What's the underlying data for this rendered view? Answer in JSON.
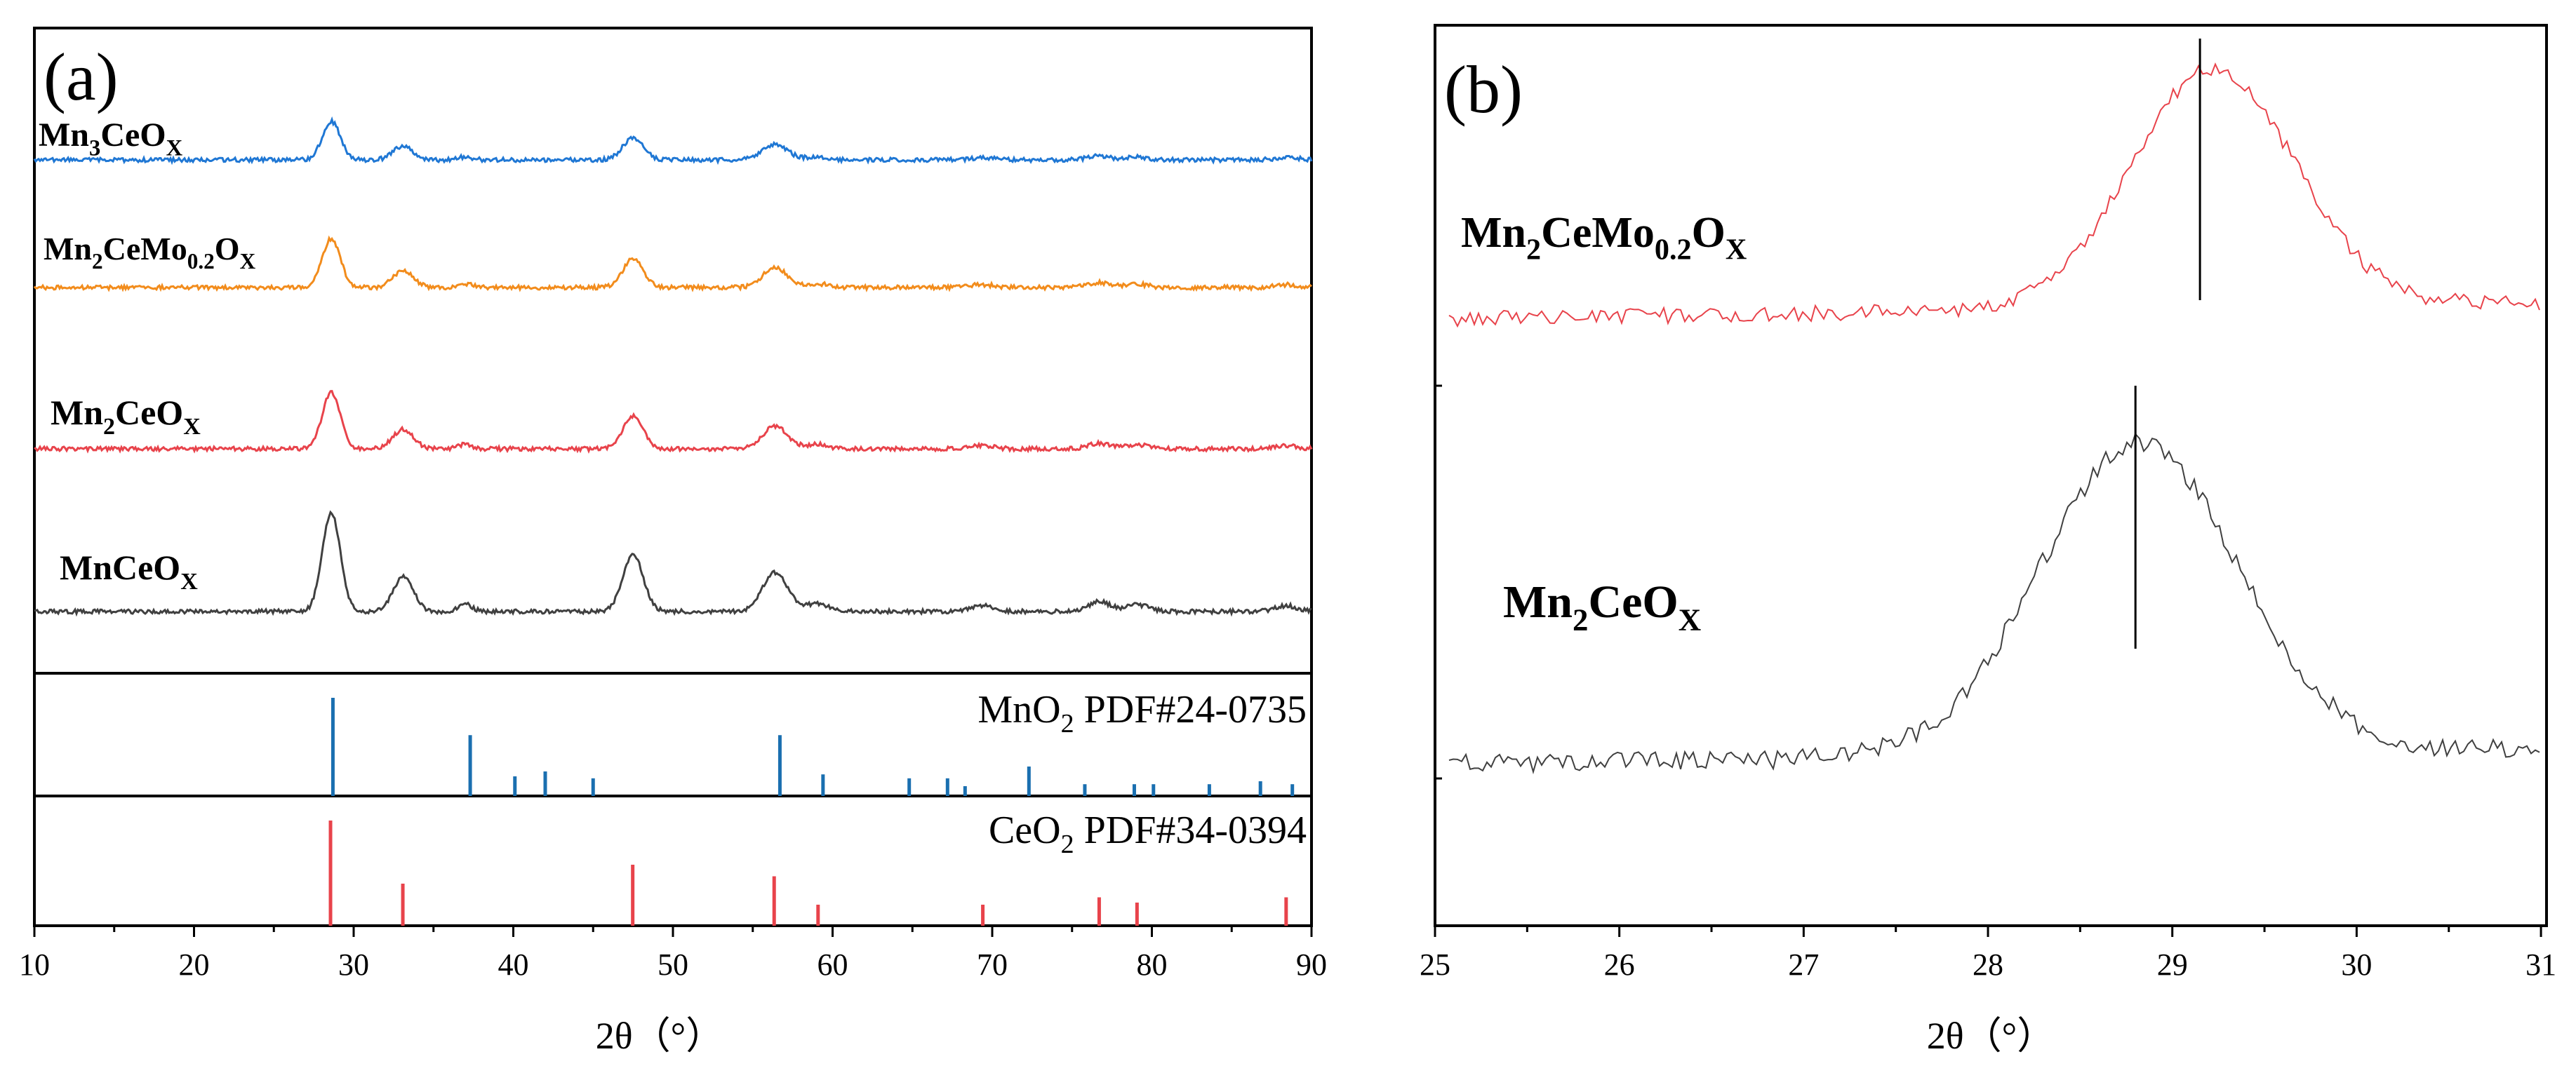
{
  "chart_data": [
    {
      "panel": "a",
      "panel_label": "(a)",
      "type": "line",
      "xlabel": "2θ（°）",
      "xlim": [
        10,
        90
      ],
      "xticks": [
        10,
        20,
        30,
        40,
        50,
        60,
        70,
        80,
        90
      ],
      "series": [
        {
          "name": "Mn3CeOX",
          "label_main": "Mn",
          "label_sub": "3",
          "label_rest": "CeO",
          "label_sub2": "X",
          "color": "#1f77d4",
          "baseline": 0.08,
          "peak_scale": 0.45
        },
        {
          "name": "Mn2CeMo0.2OX",
          "label_main": "Mn",
          "label_sub": "2",
          "label_rest": "CeMo",
          "label_sub_mid": "0.2",
          "label_rest2": "O",
          "label_sub2": "X",
          "color": "#f28c1c",
          "baseline": 0.08,
          "peak_scale": 0.6
        },
        {
          "name": "Mn2CeOX",
          "label_main": "Mn",
          "label_sub": "2",
          "label_rest": "CeO",
          "label_sub2": "X",
          "color": "#e8434b",
          "baseline": 0.08,
          "peak_scale": 0.65
        },
        {
          "name": "MnCeOX",
          "label_main": "MnCeO",
          "label_sub2": "X",
          "color": "#404040",
          "baseline": 0.08,
          "peak_scale": 1.4
        }
      ],
      "peaks": [
        {
          "pos": 28.6,
          "height": 1.0,
          "width": 0.8
        },
        {
          "pos": 33.1,
          "height": 0.35,
          "width": 0.9
        },
        {
          "pos": 37.0,
          "height": 0.08,
          "width": 0.6
        },
        {
          "pos": 47.5,
          "height": 0.58,
          "width": 0.9
        },
        {
          "pos": 56.4,
          "height": 0.4,
          "width": 1.1
        },
        {
          "pos": 59.0,
          "height": 0.08,
          "width": 1.0
        },
        {
          "pos": 69.4,
          "height": 0.06,
          "width": 1.0
        },
        {
          "pos": 76.7,
          "height": 0.1,
          "width": 1.0
        },
        {
          "pos": 79.1,
          "height": 0.07,
          "width": 1.0
        },
        {
          "pos": 88.4,
          "height": 0.06,
          "width": 1.0
        }
      ],
      "references": [
        {
          "name": "MnO2 PDF#24-0735",
          "label_main": "MnO",
          "label_sub": "2",
          "label_rest": " PDF#24-0735",
          "color": "#1a6fb0",
          "lines": [
            {
              "x": 28.7,
              "h": 1.0
            },
            {
              "x": 37.3,
              "h": 0.62
            },
            {
              "x": 40.1,
              "h": 0.2
            },
            {
              "x": 42.0,
              "h": 0.25
            },
            {
              "x": 45.0,
              "h": 0.18
            },
            {
              "x": 56.7,
              "h": 0.62
            },
            {
              "x": 59.4,
              "h": 0.22
            },
            {
              "x": 64.8,
              "h": 0.18
            },
            {
              "x": 67.2,
              "h": 0.18
            },
            {
              "x": 68.3,
              "h": 0.1
            },
            {
              "x": 72.3,
              "h": 0.3
            },
            {
              "x": 75.8,
              "h": 0.12
            },
            {
              "x": 78.9,
              "h": 0.12
            },
            {
              "x": 80.1,
              "h": 0.12
            },
            {
              "x": 83.6,
              "h": 0.12
            },
            {
              "x": 86.8,
              "h": 0.15
            },
            {
              "x": 88.8,
              "h": 0.12
            }
          ]
        },
        {
          "name": "CeO2 PDF#34-0394",
          "label_main": "CeO",
          "label_sub": "2",
          "label_rest": " PDF#34-0394",
          "color": "#e8434b",
          "lines": [
            {
              "x": 28.55,
              "h": 1.0
            },
            {
              "x": 33.08,
              "h": 0.4
            },
            {
              "x": 47.48,
              "h": 0.58
            },
            {
              "x": 56.34,
              "h": 0.47
            },
            {
              "x": 59.09,
              "h": 0.2
            },
            {
              "x": 69.41,
              "h": 0.2
            },
            {
              "x": 76.7,
              "h": 0.27
            },
            {
              "x": 79.07,
              "h": 0.22
            },
            {
              "x": 88.41,
              "h": 0.27
            }
          ]
        }
      ]
    },
    {
      "panel": "b",
      "panel_label": "(b)",
      "type": "line",
      "xlabel": "2θ（°）",
      "xlim": [
        25,
        31
      ],
      "xticks": [
        25,
        26,
        27,
        28,
        29,
        30,
        31
      ],
      "series": [
        {
          "name": "Mn2CeMo0.2OX",
          "label_main": "Mn",
          "label_sub": "2",
          "label_rest": "CeMo",
          "label_sub_mid": "0.2",
          "label_rest2": "O",
          "label_sub2": "X",
          "color": "#e8434b",
          "peak_center": 29.2,
          "marker_x": 29.15
        },
        {
          "name": "Mn2CeOX",
          "label_main": "Mn",
          "label_sub": "2",
          "label_rest": "CeO",
          "label_sub2": "X",
          "color": "#404040",
          "peak_center": 28.8,
          "marker_x": 28.8
        }
      ]
    }
  ]
}
